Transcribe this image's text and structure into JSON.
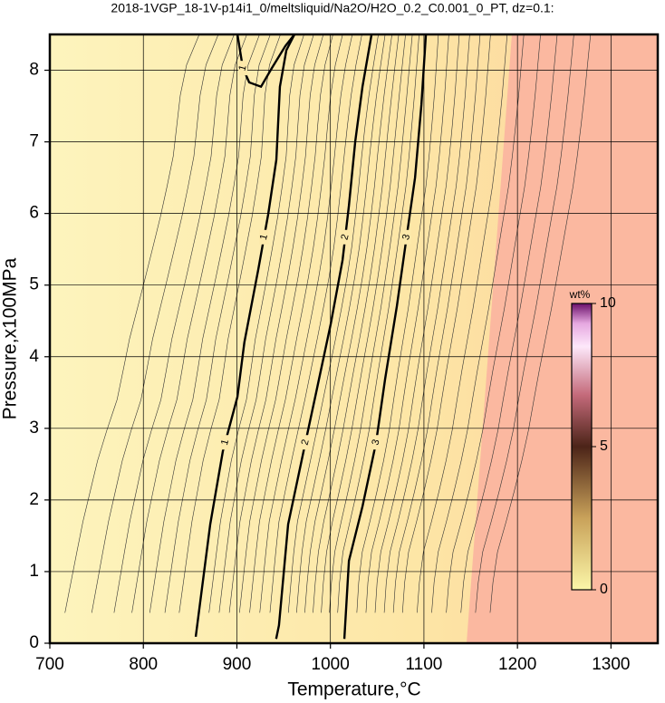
{
  "chart_data": {
    "type": "contour",
    "title": "2018-1VGP_18-1V-p14i1_0/meltsliquid/Na2O/H2O_0.2_C0.001_0_PT, dz=0.1:",
    "x_label": "Temperature,°C",
    "y_label": "Pressure,x100MPa",
    "xlim": [
      700,
      1350
    ],
    "ylim": [
      0,
      8.5
    ],
    "xticks": [
      700,
      800,
      900,
      1000,
      1100,
      1200,
      1300
    ],
    "yticks": [
      0,
      1,
      2,
      3,
      4,
      5,
      6,
      7,
      8
    ],
    "grid": true,
    "contours": [
      {
        "level": 1,
        "x": [
          856,
          871.5,
          885,
          900.6,
          908,
          922.9,
          933.5,
          942.2,
          946,
          952.9,
          961.6
        ],
        "y": [
          0.09,
          1.66,
          2.68,
          3.44,
          4.2,
          5.22,
          5.99,
          6.75,
          7.77,
          8.28,
          8.5
        ]
      },
      {
        "level": 1,
        "x": [
          900.6,
          906.4,
          913.2,
          925.8,
          937.4,
          951.9,
          961.6
        ],
        "y": [
          8.5,
          8.03,
          7.83,
          7.77,
          8.03,
          8.34,
          8.5
        ]
      },
      {
        "level": 2,
        "x": [
          942,
          945,
          954.8,
          971.3,
          985.9,
          1000.4,
          1013,
          1019.8,
          1026.6,
          1034.3,
          1044
        ],
        "y": [
          0.06,
          0.25,
          1.66,
          2.68,
          3.57,
          4.46,
          5.35,
          6.11,
          7.01,
          7.77,
          8.5
        ]
      },
      {
        "level": 3,
        "x": [
          1014.9,
          1019.8,
          1034.3,
          1048.8,
          1058.5,
          1071.1,
          1080.8,
          1090.5,
          1097.3,
          1102.1
        ],
        "y": [
          0.06,
          1.15,
          1.91,
          2.8,
          3.69,
          4.71,
          5.61,
          6.5,
          7.52,
          8.5
        ]
      }
    ],
    "colorbar": {
      "label": "wt%",
      "lim": [
        0,
        10
      ],
      "ticks": [
        0,
        5,
        10
      ]
    }
  }
}
